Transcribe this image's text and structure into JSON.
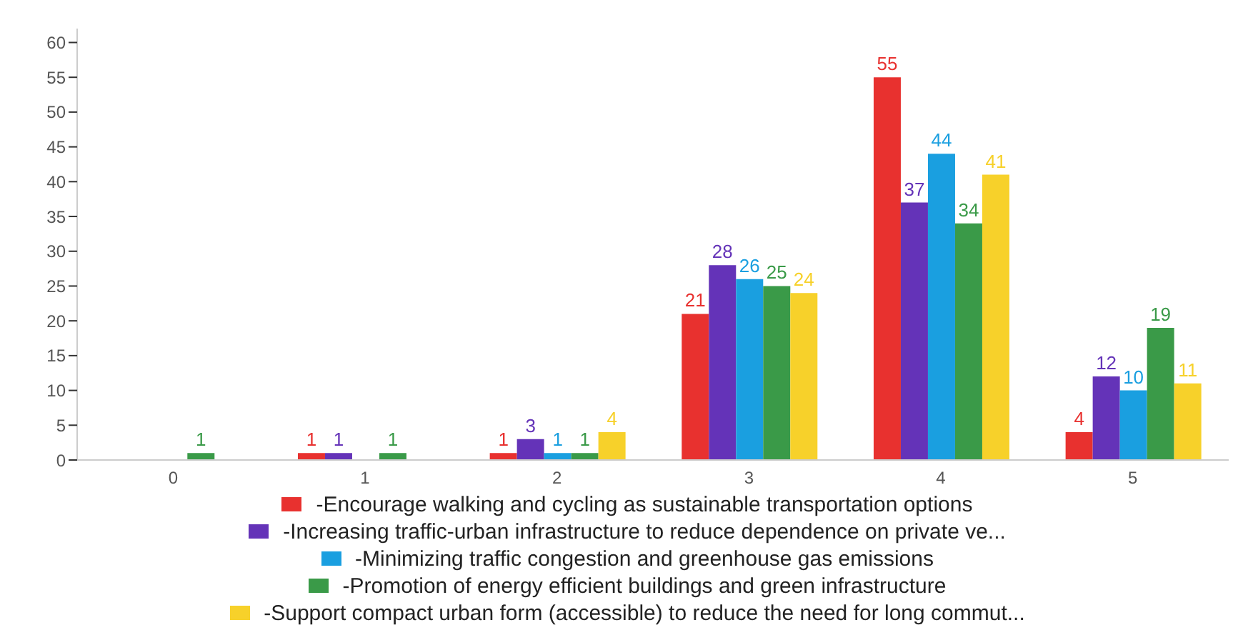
{
  "chart_data": {
    "type": "bar",
    "categories": [
      "0",
      "1",
      "2",
      "3",
      "4",
      "5"
    ],
    "series": [
      {
        "name": "-Encourage walking and cycling as sustainable transportation options",
        "color": "#e8312f",
        "values": [
          null,
          1,
          1,
          21,
          55,
          4
        ]
      },
      {
        "name": "-Increasing traffic-urban infrastructure to reduce dependence on private ve...",
        "color": "#6433b8",
        "values": [
          null,
          1,
          3,
          28,
          37,
          12
        ]
      },
      {
        "name": "-Minimizing traffic congestion and greenhouse gas emissions",
        "color": "#1a9fe0",
        "values": [
          null,
          null,
          1,
          26,
          44,
          10
        ]
      },
      {
        "name": "-Promotion of energy efficient buildings and green infrastructure",
        "color": "#3a9a48",
        "values": [
          1,
          1,
          1,
          25,
          34,
          19
        ]
      },
      {
        "name": "-Support compact urban form (accessible) to reduce the need for long commut...",
        "color": "#f7d12a",
        "values": [
          null,
          null,
          4,
          24,
          41,
          11
        ]
      }
    ],
    "ylim": [
      0,
      62
    ],
    "yticks": [
      0,
      5,
      10,
      15,
      20,
      25,
      30,
      35,
      40,
      45,
      50,
      55,
      60
    ],
    "grid": false,
    "legend": "bottom",
    "data_labels": true
  }
}
